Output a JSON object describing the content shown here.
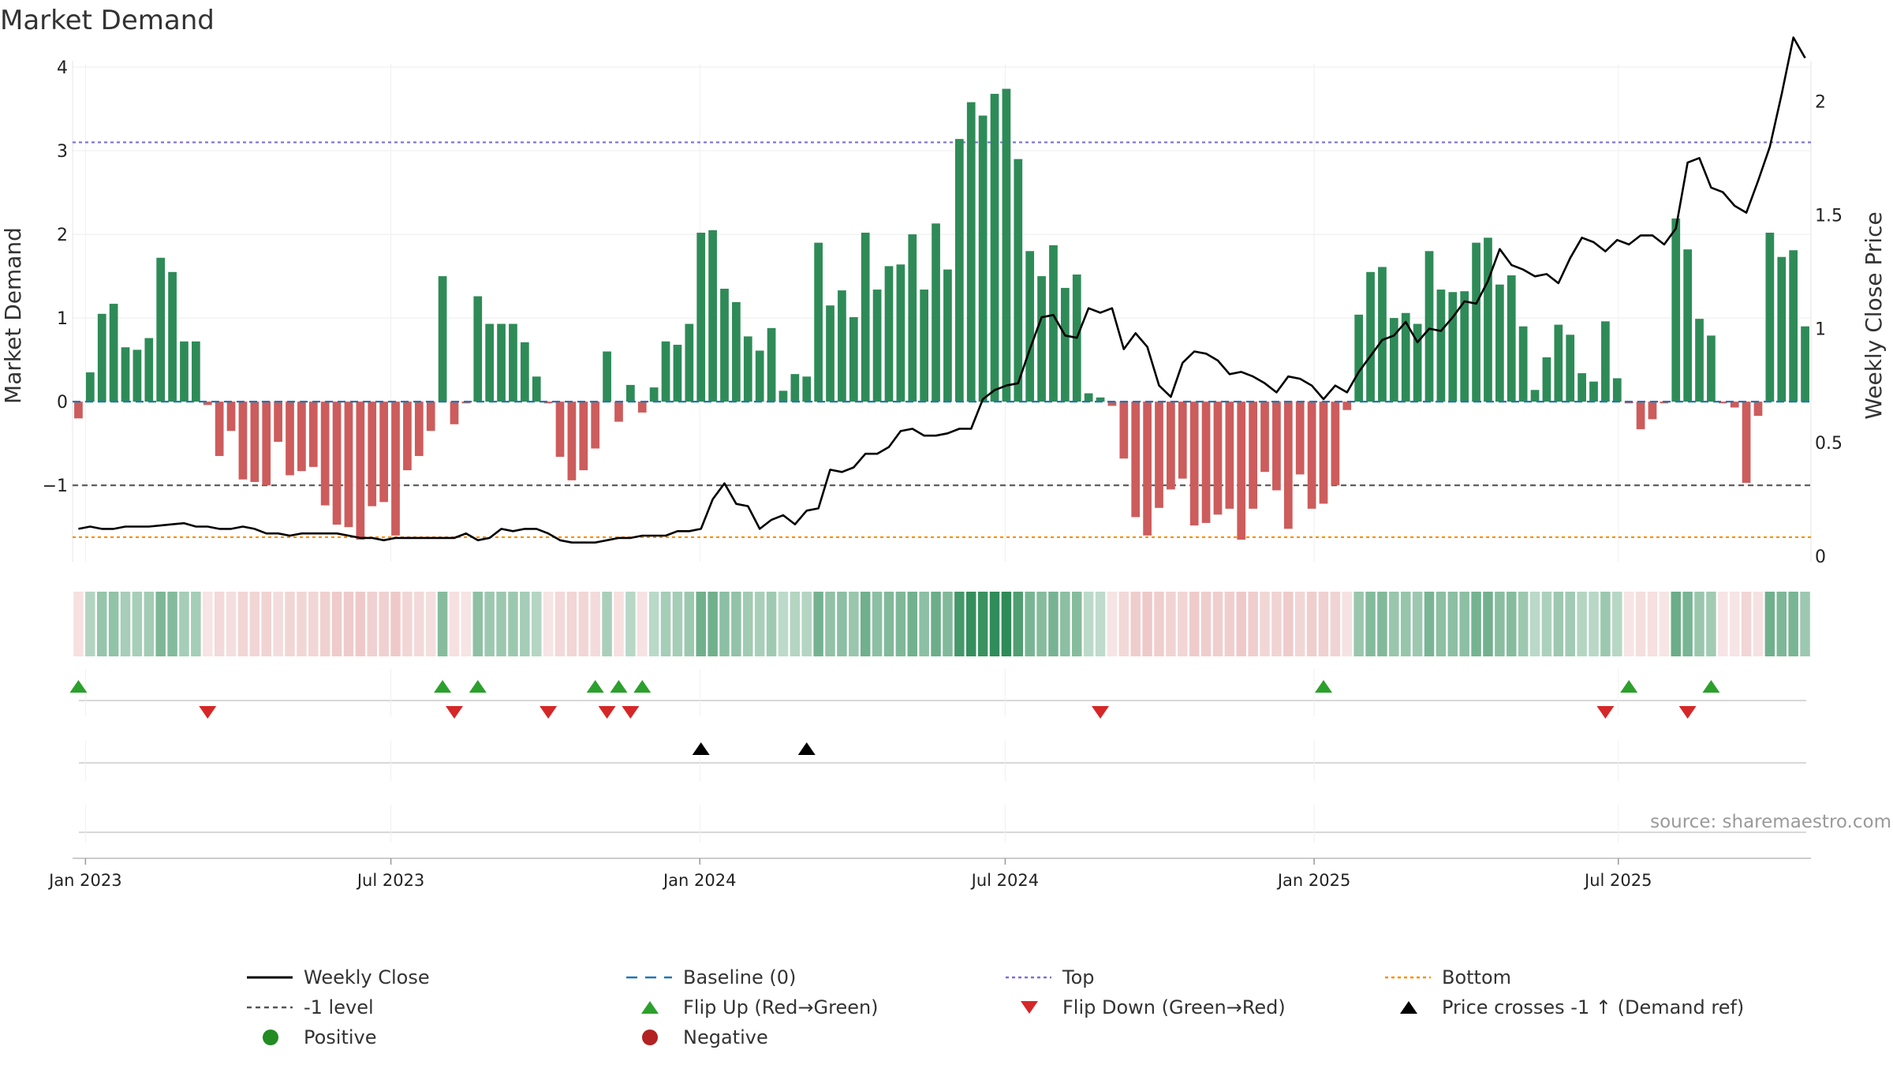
{
  "chart_data": {
    "type": "bar",
    "title": "Market Demand",
    "ylabel": "Market Demand",
    "y2label": "Weekly Close Price",
    "ylim": [
      -1.8,
      4
    ],
    "y2lim": [
      0,
      2.15
    ],
    "yticks": [
      -1,
      0,
      1,
      2,
      3,
      4
    ],
    "ytick_labels": [
      "−1",
      "0",
      "1",
      "2",
      "3",
      "4"
    ],
    "y2ticks": [
      0,
      0.5,
      1,
      1.5,
      2
    ],
    "y2tick_labels": [
      "0",
      "0.5",
      "1",
      "1.5",
      "2"
    ],
    "x_start": "2022-12-28",
    "x_step_weeks": 1,
    "date_ticks": [
      {
        "label": "Jan 2023",
        "week": 0.6
      },
      {
        "label": "Jul 2023",
        "week": 26.6
      },
      {
        "label": "Jan 2024",
        "week": 52.9
      },
      {
        "label": "Jul 2024",
        "week": 78.9
      },
      {
        "label": "Jan 2025",
        "week": 105.2
      },
      {
        "label": "Jul 2025",
        "week": 131.1
      }
    ],
    "reference_lines": [
      {
        "name": "Top",
        "value": 3.1,
        "color": "#7b6fd6",
        "style": "dotted"
      },
      {
        "name": "-1 level",
        "value": -1,
        "color": "#555555",
        "style": "dashed"
      },
      {
        "name": "Bottom",
        "value": -1.62,
        "color": "#ff8c00",
        "style": "dotted"
      },
      {
        "name": "Baseline (0)",
        "value": 0,
        "color": "#1f77b4",
        "style": "dashed"
      }
    ],
    "series": [
      {
        "name": "Market Demand",
        "values": [
          -0.2,
          0.35,
          1.05,
          1.17,
          0.65,
          0.62,
          0.76,
          1.72,
          1.55,
          0.72,
          0.72,
          -0.04,
          -0.65,
          -0.35,
          -0.93,
          -0.96,
          -1.0,
          -0.48,
          -0.88,
          -0.83,
          -0.78,
          -1.24,
          -1.47,
          -1.5,
          -1.65,
          -1.25,
          -1.2,
          -1.6,
          -0.82,
          -0.65,
          -0.35,
          1.5,
          -0.27,
          -0.02,
          1.26,
          0.93,
          0.93,
          0.93,
          0.71,
          0.3,
          -0.02,
          -0.66,
          -0.94,
          -0.82,
          -0.56,
          0.6,
          -0.24,
          0.2,
          -0.13,
          0.17,
          0.72,
          0.68,
          0.93,
          2.02,
          2.05,
          1.35,
          1.19,
          0.78,
          0.61,
          0.88,
          0.13,
          0.33,
          0.3,
          1.9,
          1.15,
          1.33,
          1.01,
          2.02,
          1.34,
          1.62,
          1.64,
          2.0,
          1.34,
          2.13,
          1.58,
          3.14,
          3.58,
          3.42,
          3.68,
          3.74,
          2.9,
          1.8,
          1.5,
          1.87,
          1.36,
          1.52,
          0.1,
          0.05,
          -0.05,
          -0.68,
          -1.38,
          -1.6,
          -1.27,
          -1.05,
          -0.92,
          -1.48,
          -1.45,
          -1.35,
          -1.28,
          -1.65,
          -1.28,
          -0.84,
          -1.06,
          -1.52,
          -0.87,
          -1.28,
          -1.22,
          -1.0,
          -0.1,
          1.04,
          1.55,
          1.61,
          1.0,
          1.06,
          0.93,
          1.8,
          1.34,
          1.31,
          1.32,
          1.9,
          1.96,
          1.4,
          1.51,
          0.9,
          0.14,
          0.53,
          0.92,
          0.8,
          0.34,
          0.24,
          0.96,
          0.28,
          -0.02,
          -0.33,
          -0.21,
          -0.02,
          2.19,
          1.82,
          0.99,
          0.79,
          -0.02,
          -0.07,
          -0.97,
          -0.17,
          2.02,
          1.73,
          1.81,
          0.9
        ]
      },
      {
        "name": "Weekly Close",
        "axis": "right",
        "values": [
          0.12,
          0.13,
          0.12,
          0.12,
          0.13,
          0.13,
          0.13,
          0.135,
          0.14,
          0.145,
          0.13,
          0.13,
          0.12,
          0.12,
          0.13,
          0.12,
          0.1,
          0.1,
          0.09,
          0.1,
          0.1,
          0.1,
          0.1,
          0.09,
          0.08,
          0.08,
          0.07,
          0.08,
          0.08,
          0.08,
          0.08,
          0.08,
          0.08,
          0.1,
          0.07,
          0.08,
          0.12,
          0.11,
          0.12,
          0.12,
          0.1,
          0.07,
          0.06,
          0.06,
          0.06,
          0.07,
          0.08,
          0.08,
          0.09,
          0.09,
          0.09,
          0.11,
          0.11,
          0.12,
          0.25,
          0.32,
          0.23,
          0.22,
          0.12,
          0.16,
          0.18,
          0.14,
          0.2,
          0.21,
          0.38,
          0.37,
          0.39,
          0.45,
          0.45,
          0.48,
          0.55,
          0.56,
          0.53,
          0.53,
          0.54,
          0.56,
          0.56,
          0.69,
          0.73,
          0.75,
          0.76,
          0.91,
          1.05,
          1.06,
          0.97,
          0.96,
          1.09,
          1.07,
          1.09,
          0.91,
          0.98,
          0.92,
          0.75,
          0.7,
          0.85,
          0.9,
          0.89,
          0.86,
          0.8,
          0.81,
          0.79,
          0.76,
          0.72,
          0.79,
          0.78,
          0.75,
          0.69,
          0.75,
          0.72,
          0.81,
          0.88,
          0.95,
          0.97,
          1.03,
          0.94,
          1.0,
          0.99,
          1.05,
          1.12,
          1.11,
          1.21,
          1.35,
          1.28,
          1.26,
          1.23,
          1.24,
          1.2,
          1.31,
          1.4,
          1.38,
          1.34,
          1.39,
          1.37,
          1.41,
          1.41,
          1.37,
          1.44,
          1.73,
          1.75,
          1.62,
          1.6,
          1.54,
          1.51,
          1.65,
          1.8,
          2.03,
          2.28,
          2.19
        ]
      }
    ],
    "color_strip": {
      "positive": "#2e8b57",
      "negative": "#cd5c5c"
    },
    "flip_up_weeks": [
      0,
      31,
      34,
      44,
      46,
      48,
      106,
      132,
      139
    ],
    "flip_down_weeks": [
      11,
      32,
      40,
      45,
      47,
      87,
      130,
      137
    ],
    "price_cross_weeks": [
      53,
      62
    ],
    "legend": {
      "position": "bottom",
      "entries": [
        {
          "label": "Weekly Close",
          "kind": "line",
          "color": "#000000",
          "dash": "solid"
        },
        {
          "label": "Baseline (0)",
          "kind": "line",
          "color": "#1f77b4",
          "dash": "dashed"
        },
        {
          "label": "Top",
          "kind": "line",
          "color": "#7b6fd6",
          "dash": "dotted"
        },
        {
          "label": "Bottom",
          "kind": "line",
          "color": "#ff8c00",
          "dash": "dotted"
        },
        {
          "label": "-1 level",
          "kind": "line",
          "color": "#555555",
          "dash": "dashed"
        },
        {
          "label": "Flip Up (Red→Green)",
          "kind": "tri-up",
          "color": "#2ca02c"
        },
        {
          "label": "Flip Down (Green→Red)",
          "kind": "tri-down",
          "color": "#d62728"
        },
        {
          "label": "Price crosses -1 ↑ (Demand ref)",
          "kind": "tri-up",
          "color": "#000000"
        },
        {
          "label": "Positive",
          "kind": "dot",
          "color": "#228b22"
        },
        {
          "label": "Negative",
          "kind": "dot",
          "color": "#b22222"
        }
      ]
    },
    "source": "source: sharemaestro.com"
  }
}
